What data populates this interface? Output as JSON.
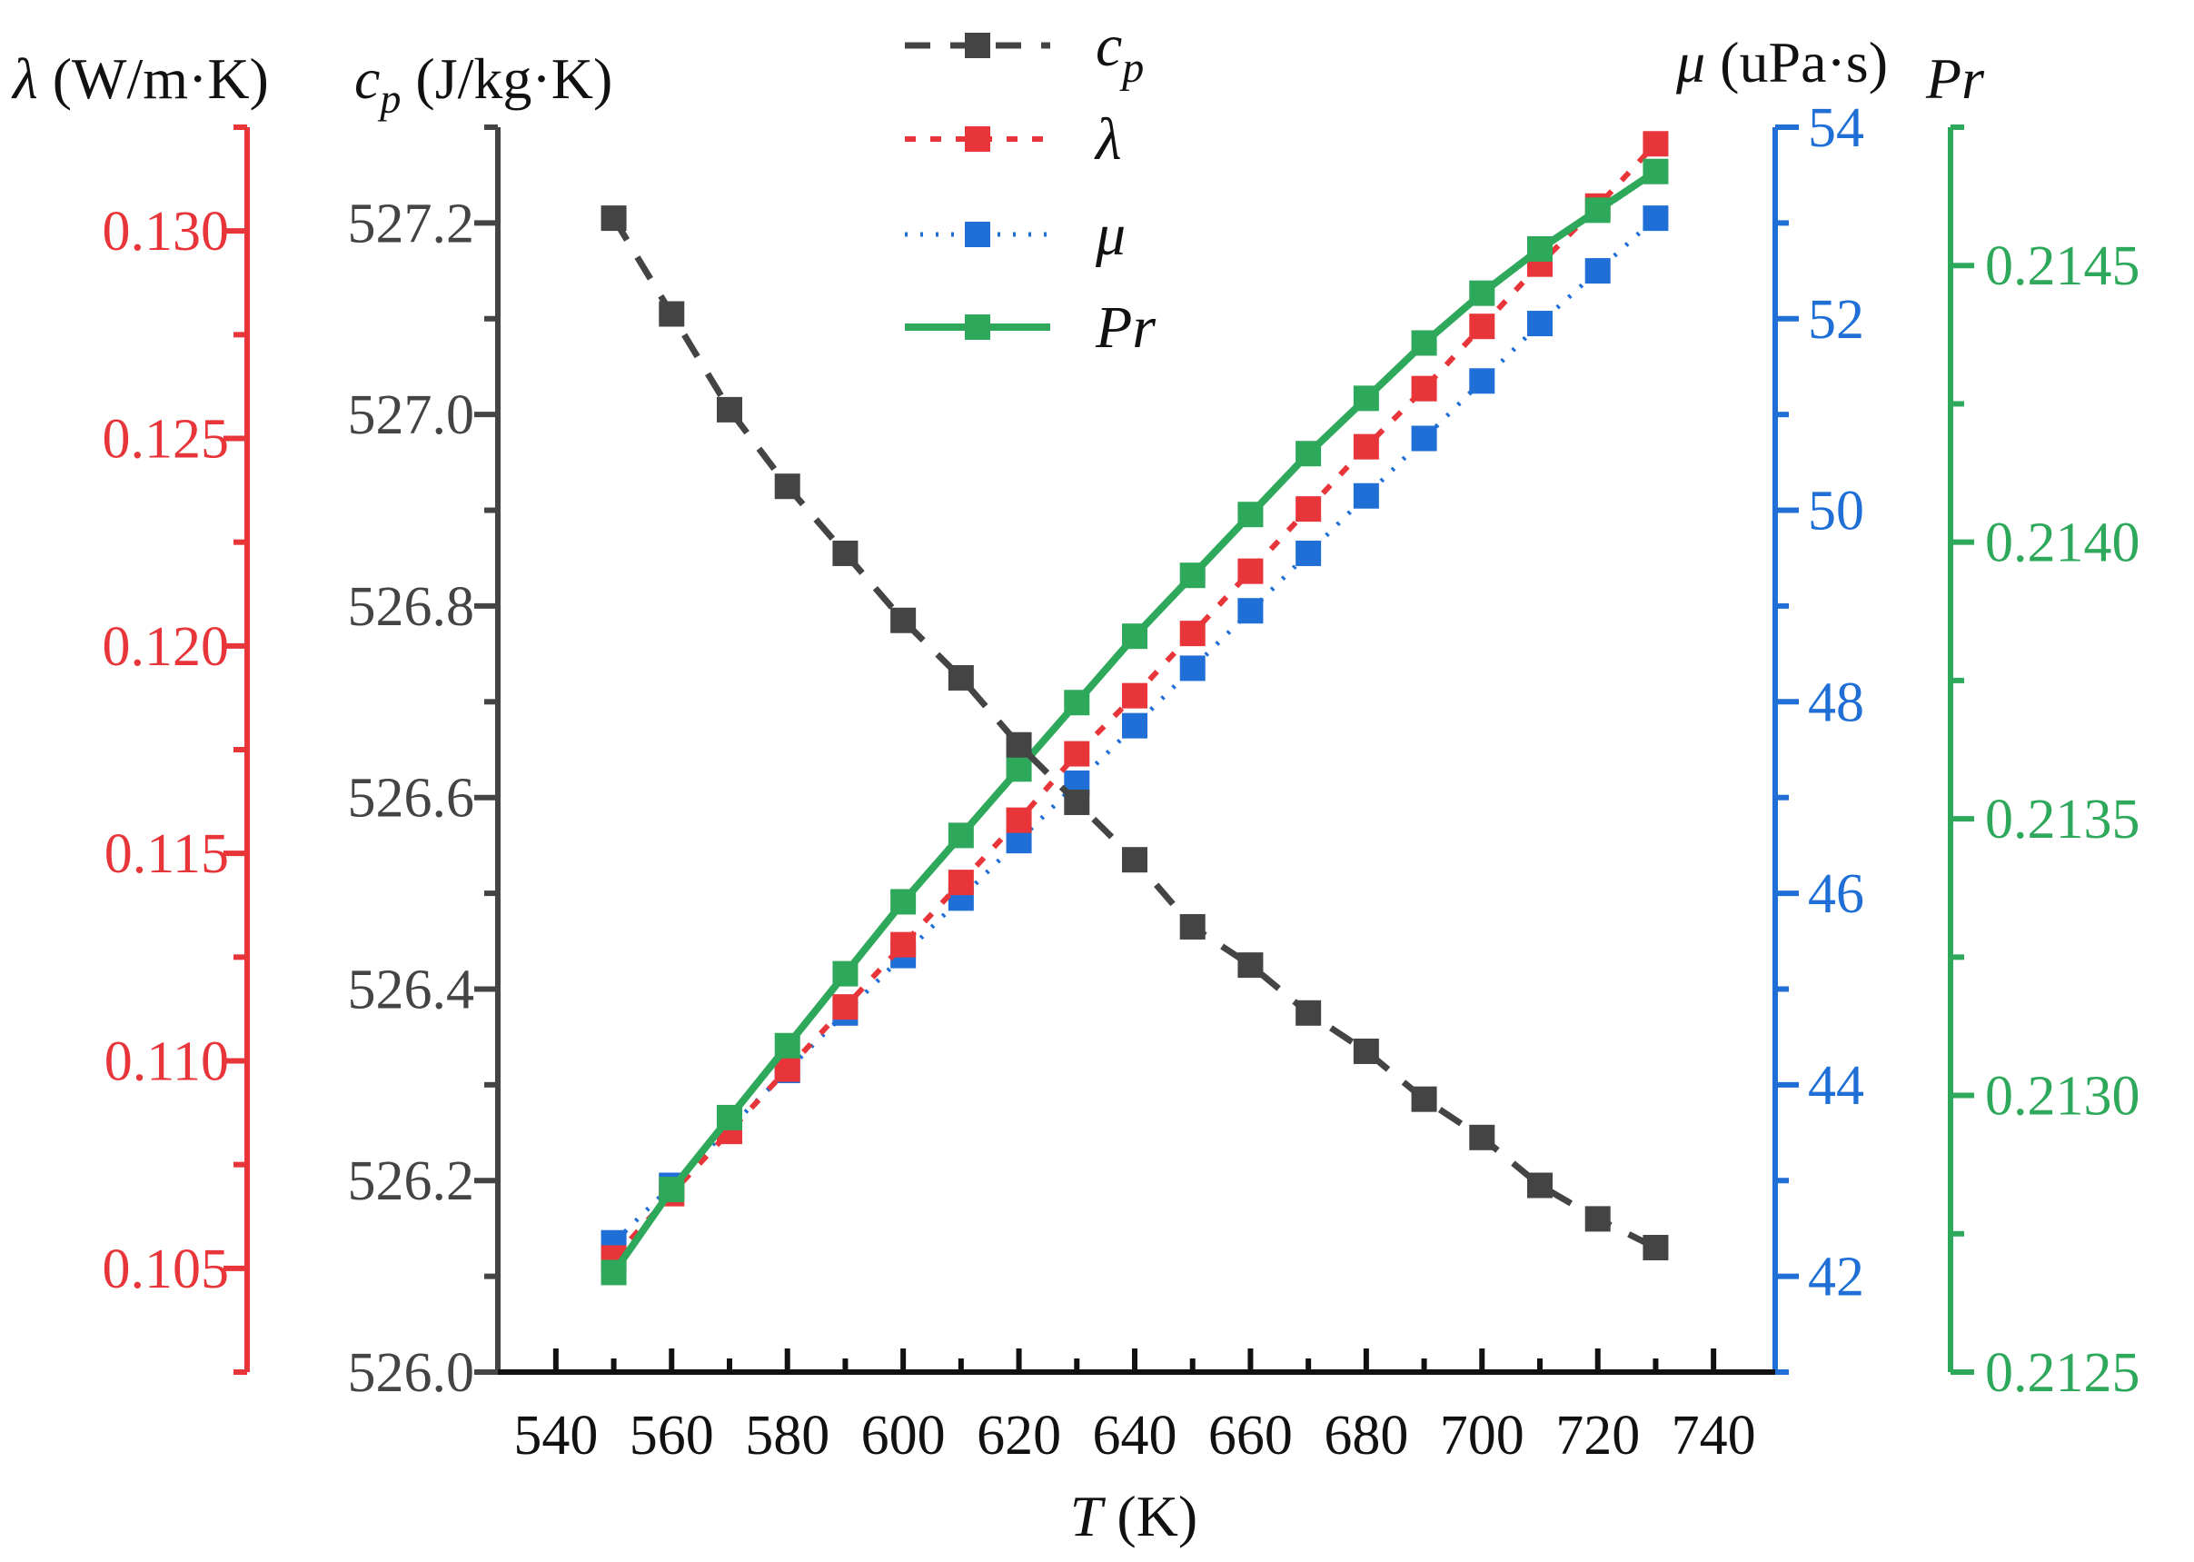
{
  "chart_data": {
    "type": "line",
    "x": [
      550,
      560,
      570,
      580,
      590,
      600,
      610,
      620,
      630,
      640,
      650,
      660,
      670,
      680,
      690,
      700,
      710,
      720,
      730
    ],
    "xlabel": {
      "var": "T",
      "unit": " (K)"
    },
    "xlim": [
      535,
      745
    ],
    "xticks": [
      540,
      560,
      580,
      600,
      620,
      640,
      660,
      680,
      700,
      720,
      740
    ],
    "axes": {
      "lambda": {
        "title_var": "λ",
        "title_unit": " (W/m·K)",
        "color": "#e8353a",
        "ylim": [
          0.1025,
          0.1325
        ],
        "ticks": [
          0.105,
          0.11,
          0.115,
          0.12,
          0.125,
          0.13
        ],
        "tick_labels": [
          "0.105",
          "0.110",
          "0.115",
          "0.120",
          "0.125",
          "0.130"
        ]
      },
      "cp": {
        "title_var": "c",
        "title_sub": "p",
        "title_unit": " (J/kg·K)",
        "color": "#444444",
        "ylim": [
          526.0,
          527.3
        ],
        "ticks": [
          526.0,
          526.2,
          526.4,
          526.6,
          526.8,
          527.0,
          527.2
        ],
        "tick_labels": [
          "526.0",
          "526.2",
          "526.4",
          "526.6",
          "526.8",
          "527.0",
          "527.2"
        ]
      },
      "mu": {
        "title_var": "μ",
        "title_unit": " (uPa·s)",
        "color": "#1f6fd6",
        "ylim": [
          41.0,
          54.0
        ],
        "ticks": [
          42,
          44,
          46,
          48,
          50,
          52,
          54
        ],
        "tick_labels": [
          "42",
          "44",
          "46",
          "48",
          "50",
          "52",
          "54"
        ]
      },
      "pr": {
        "title_var": "Pr",
        "color": "#2ea85a",
        "ylim": [
          0.2125,
          0.21475
        ],
        "ticks": [
          0.2125,
          0.213,
          0.2135,
          0.214,
          0.2145
        ],
        "tick_labels": [
          "0.2125",
          "0.2130",
          "0.2135",
          "0.2140",
          "0.2145"
        ]
      }
    },
    "series": [
      {
        "name": "c",
        "sub": "p",
        "axis": "cp",
        "color": "#444444",
        "dash": "28,22",
        "width": 7,
        "values": [
          527.205,
          527.105,
          527.005,
          526.925,
          526.855,
          526.785,
          526.725,
          526.655,
          526.595,
          526.535,
          526.465,
          526.425,
          526.375,
          526.335,
          526.285,
          526.245,
          526.195,
          526.16,
          526.13
        ]
      },
      {
        "name": "λ",
        "axis": "lambda",
        "color": "#e8353a",
        "dash": "12,16",
        "width": 6,
        "values": [
          0.10525,
          0.1068,
          0.1083,
          0.1098,
          0.1113,
          0.1128,
          0.1143,
          0.1158,
          0.1174,
          0.1188,
          0.1203,
          0.1218,
          0.1233,
          0.1248,
          0.1262,
          0.1277,
          0.1292,
          0.1306,
          0.1321
        ]
      },
      {
        "name": "μ",
        "axis": "mu",
        "color": "#1f6fd6",
        "dash": "3,14",
        "width": 5,
        "values": [
          42.35,
          42.95,
          43.55,
          44.15,
          44.75,
          45.35,
          45.95,
          46.55,
          47.15,
          47.75,
          48.35,
          48.95,
          49.55,
          50.15,
          50.75,
          51.35,
          51.95,
          52.5,
          53.05
        ]
      },
      {
        "name": "Pr",
        "axis": "pr",
        "color": "#2ea85a",
        "dash": "",
        "width": 8,
        "values": [
          0.21268,
          0.21283,
          0.21296,
          0.21309,
          0.21322,
          0.21335,
          0.21347,
          0.21359,
          0.21371,
          0.21383,
          0.21394,
          0.21405,
          0.21416,
          0.21426,
          0.21436,
          0.21445,
          0.21453,
          0.2146,
          0.21467
        ]
      }
    ]
  }
}
